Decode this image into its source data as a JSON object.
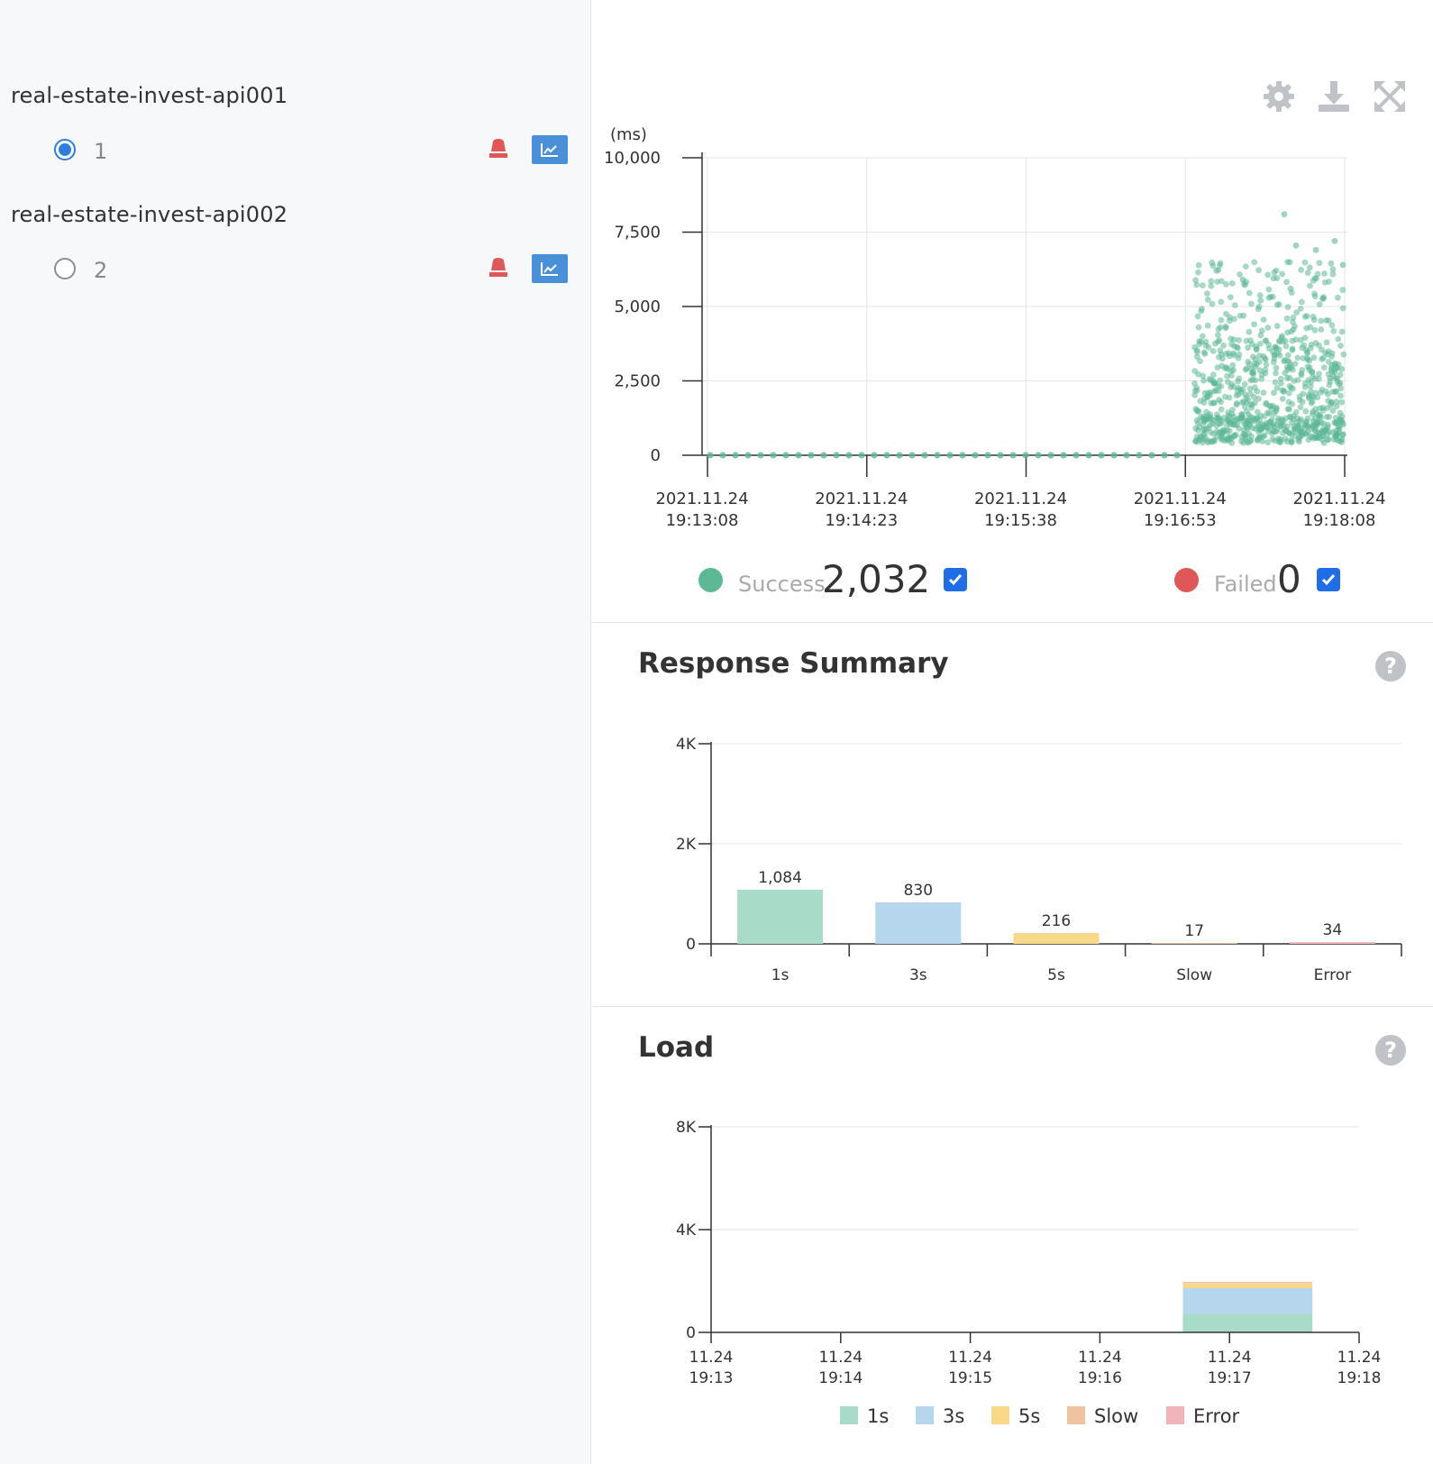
{
  "sidebar": {
    "apps": [
      {
        "name": "real-estate-invest-api001",
        "agent": "1",
        "selected": true
      },
      {
        "name": "real-estate-invest-api002",
        "agent": "2",
        "selected": false
      }
    ],
    "icons": {
      "alert": "alarm-bell-icon",
      "inspector": "line-chart-icon"
    }
  },
  "toolbar": {
    "icons": [
      "gear-icon",
      "download-icon",
      "fullscreen-icon"
    ]
  },
  "scatter": {
    "unit": "(ms)",
    "summary": {
      "success_label": "Success",
      "success_count": "2,032",
      "failed_label": "Failed",
      "failed_count": "0"
    },
    "colors": {
      "success": "#5cb895",
      "failed": "#e05757"
    }
  },
  "response_summary": {
    "title": "Response Summary"
  },
  "load": {
    "title": "Load"
  },
  "chart_data": [
    {
      "type": "scatter",
      "ylabel": "(ms)",
      "ylim": [
        0,
        10000
      ],
      "yticks": [
        "10,000",
        "7,500",
        "5,000",
        "2,500",
        "0"
      ],
      "xticks": [
        [
          "2021.11.24",
          "19:13:08"
        ],
        [
          "2021.11.24",
          "19:14:23"
        ],
        [
          "2021.11.24",
          "19:15:38"
        ],
        [
          "2021.11.24",
          "19:16:53"
        ],
        [
          "2021.11.24",
          "19:18:08"
        ]
      ],
      "series": [
        {
          "name": "Success",
          "count": 2032,
          "color": "#5cb895",
          "description_points": "flat at 0 from 19:13:08 to 19:16:53, then dense cloud 0-6500 ms (outliers up to ~8000 ms) from ~19:16:59 to 19:18:08"
        },
        {
          "name": "Failed",
          "count": 0,
          "color": "#e05757"
        }
      ],
      "grid": true
    },
    {
      "type": "bar",
      "title": "Response Summary",
      "categories": [
        "1s",
        "3s",
        "5s",
        "Slow",
        "Error"
      ],
      "values": [
        1084,
        830,
        216,
        17,
        34
      ],
      "value_labels": [
        "1,084",
        "830",
        "216",
        "17",
        "34"
      ],
      "colors": [
        "#a8dcc9",
        "#b5d6ec",
        "#f8d98a",
        "#efc2a0",
        "#f1b5b9"
      ],
      "yticks": [
        "4K",
        "2K",
        "0"
      ],
      "ylim": [
        0,
        4000
      ],
      "grid": true
    },
    {
      "type": "area",
      "title": "Load",
      "x": [
        [
          "11.24",
          "19:13"
        ],
        [
          "11.24",
          "19:14"
        ],
        [
          "11.24",
          "19:15"
        ],
        [
          "11.24",
          "19:16"
        ],
        [
          "11.24",
          "19:17"
        ],
        [
          "11.24",
          "19:18"
        ]
      ],
      "yticks": [
        "8K",
        "4K",
        "0"
      ],
      "ylim": [
        0,
        8000
      ],
      "stacked": true,
      "series": [
        {
          "name": "1s",
          "color": "#a8dcc9",
          "values": [
            0,
            0,
            0,
            0,
            720,
            150
          ]
        },
        {
          "name": "3s",
          "color": "#b5d6ec",
          "values": [
            0,
            0,
            0,
            0,
            1000,
            100
          ]
        },
        {
          "name": "5s",
          "color": "#f8d98a",
          "values": [
            0,
            0,
            0,
            0,
            200,
            50
          ]
        },
        {
          "name": "Slow",
          "color": "#efc2a0",
          "values": [
            0,
            0,
            0,
            0,
            15,
            5
          ]
        },
        {
          "name": "Error",
          "color": "#f1b5b9",
          "values": [
            0,
            0,
            0,
            0,
            30,
            5
          ]
        }
      ],
      "legend": "bottom",
      "grid": true
    }
  ]
}
